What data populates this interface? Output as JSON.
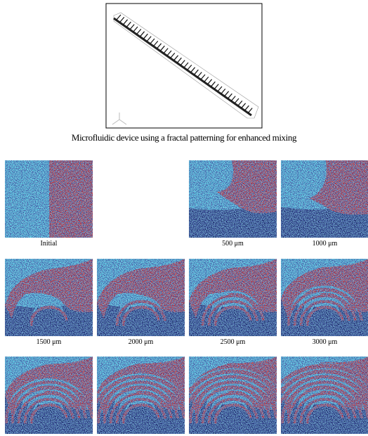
{
  "figure": {
    "caption": "Microfluidic device using a fractal patterning for enhanced mixing",
    "panels": [
      {
        "label": "Initial"
      },
      {
        "label": "500 μm"
      },
      {
        "label": "1000 μm"
      },
      {
        "label": "1500 μm"
      },
      {
        "label": "2000 μm"
      },
      {
        "label": "2500 μm"
      },
      {
        "label": "3000 μm"
      }
    ]
  }
}
